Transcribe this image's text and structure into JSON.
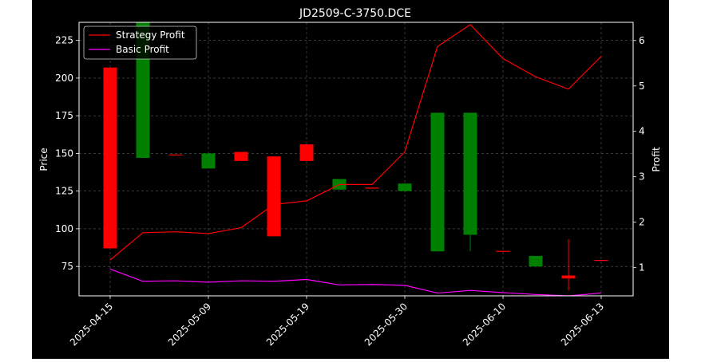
{
  "chart_data": {
    "type": "candlestick",
    "title": "JD2509-C-3750.DCE",
    "xlabel": "",
    "ylabel_left": "Price",
    "ylabel_right": "Profit",
    "ylim_left": [
      55.5,
      237
    ],
    "ylim_right": [
      0.38,
      6.4
    ],
    "y_ticks_left": [
      75,
      100,
      125,
      150,
      175,
      200,
      225
    ],
    "y_ticks_right": [
      1,
      2,
      3,
      4,
      5,
      6
    ],
    "x_tick_labels": [
      {
        "index": 0,
        "label": "2025-04-15"
      },
      {
        "index": 3,
        "label": "2025-05-09"
      },
      {
        "index": 6,
        "label": "2025-05-19"
      },
      {
        "index": 9,
        "label": "2025-05-30"
      },
      {
        "index": 12,
        "label": "2025-06-10"
      },
      {
        "index": 15,
        "label": "2025-06-13"
      }
    ],
    "grid": true,
    "legend_position": "top-left",
    "up_color": "#ff0000",
    "down_color": "#008000",
    "candles": [
      {
        "open": 87,
        "close": 207,
        "high": 207,
        "low": 87
      },
      {
        "open": 237,
        "close": 147,
        "high": 237,
        "low": 147
      },
      {
        "open": 149,
        "close": 149,
        "high": 149,
        "low": 149
      },
      {
        "open": 150,
        "close": 140,
        "high": 150,
        "low": 140
      },
      {
        "open": 145,
        "close": 151,
        "high": 151,
        "low": 145
      },
      {
        "open": 95,
        "close": 148,
        "high": 148,
        "low": 95
      },
      {
        "open": 145,
        "close": 156,
        "high": 156,
        "low": 145
      },
      {
        "open": 133,
        "close": 126,
        "high": 133,
        "low": 126
      },
      {
        "open": 127,
        "close": 127,
        "high": 127,
        "low": 127
      },
      {
        "open": 130,
        "close": 125,
        "high": 130,
        "low": 125
      },
      {
        "open": 177,
        "close": 85,
        "high": 177,
        "low": 85
      },
      {
        "open": 177,
        "close": 96,
        "high": 177,
        "low": 85
      },
      {
        "open": 85,
        "close": 85,
        "high": 85,
        "low": 85
      },
      {
        "open": 82,
        "close": 75,
        "high": 82,
        "low": 75
      },
      {
        "open": 67,
        "close": 69,
        "high": 93,
        "low": 59
      },
      {
        "open": 79,
        "close": 79,
        "high": 79,
        "low": 79
      }
    ],
    "series": [
      {
        "name": "Strategy Profit",
        "color": "#ff0000",
        "values": [
          1.17,
          1.77,
          1.79,
          1.75,
          1.88,
          2.39,
          2.47,
          2.83,
          2.83,
          3.55,
          5.87,
          6.35,
          5.6,
          5.2,
          4.93,
          5.65
        ]
      },
      {
        "name": "Basic Profit",
        "color": "#ff00ff",
        "values": [
          0.97,
          0.7,
          0.71,
          0.68,
          0.71,
          0.7,
          0.74,
          0.62,
          0.63,
          0.61,
          0.44,
          0.5,
          0.45,
          0.41,
          0.38,
          0.44
        ]
      }
    ]
  }
}
